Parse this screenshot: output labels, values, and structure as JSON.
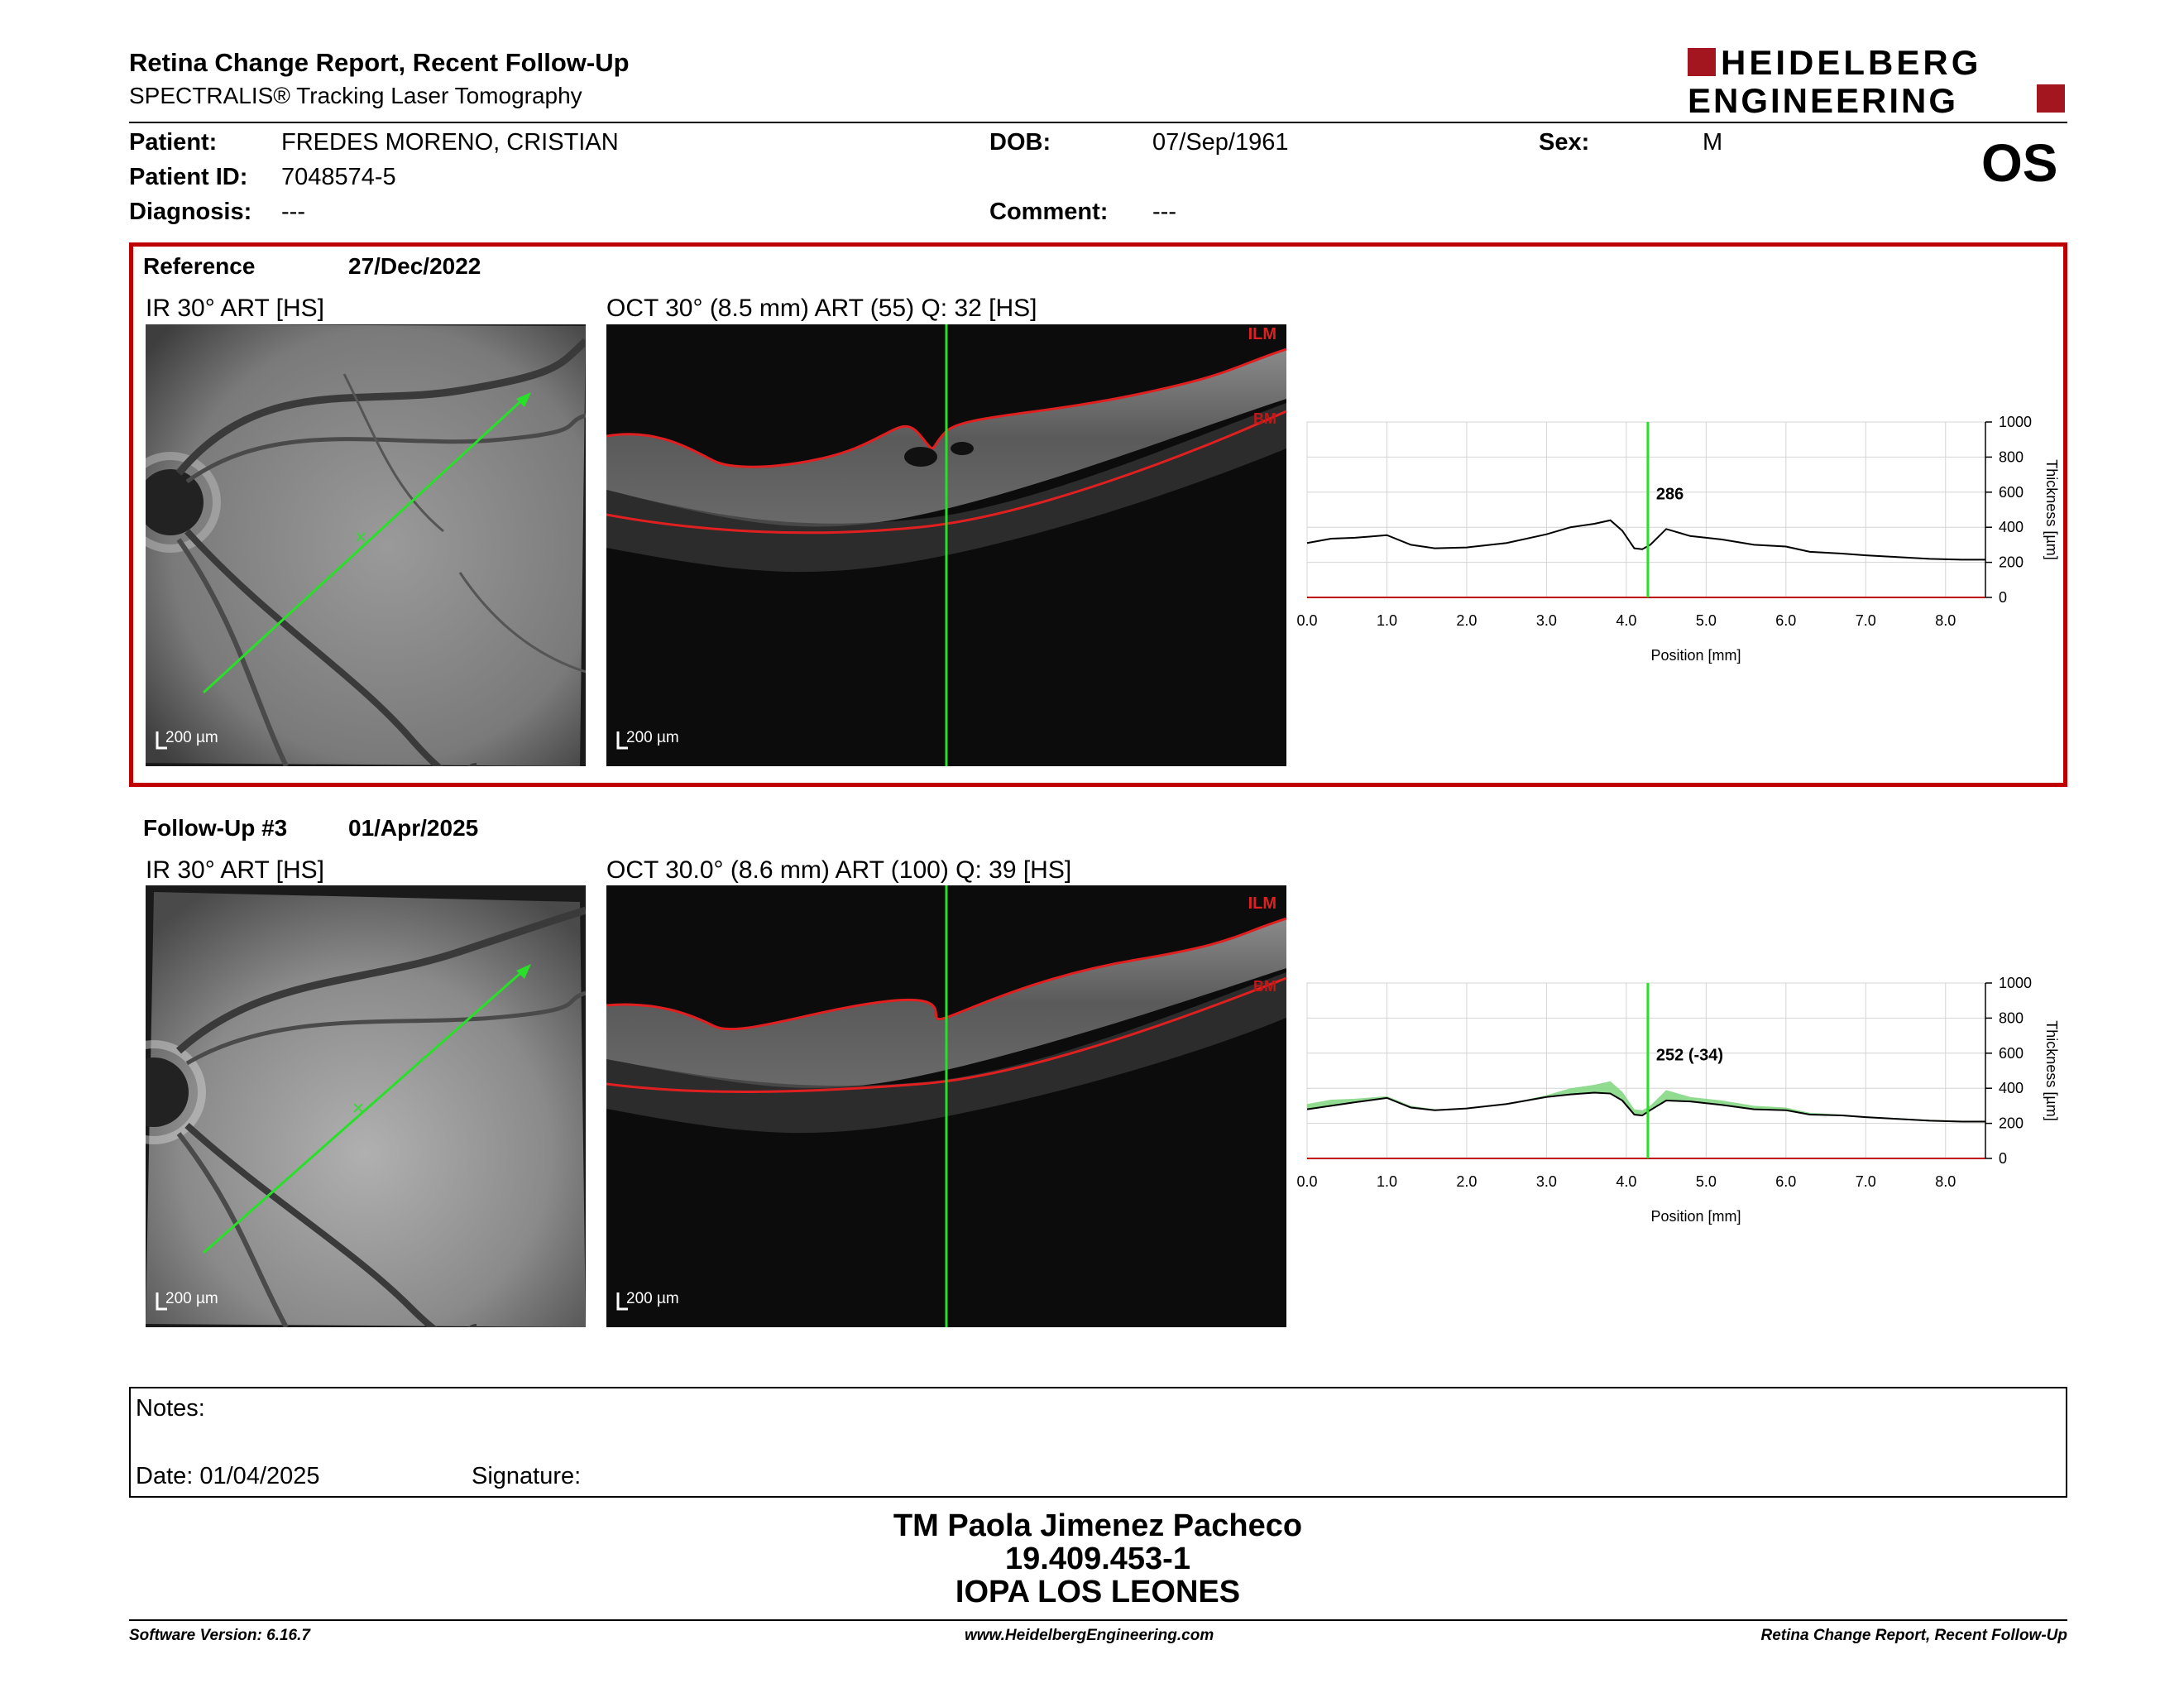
{
  "header": {
    "title": "Retina Change Report, Recent Follow-Up",
    "subtitle": "SPECTRALIS® Tracking Laser Tomography",
    "logo_line1": "HEIDELBERG",
    "logo_line2": "ENGINEERING",
    "eye": "OS"
  },
  "patient": {
    "name_label": "Patient:",
    "name": "FREDES MORENO, CRISTIAN",
    "id_label": "Patient ID:",
    "id": "7048574-5",
    "diagnosis_label": "Diagnosis:",
    "diagnosis": "---",
    "dob_label": "DOB:",
    "dob": "07/Sep/1961",
    "comment_label": "Comment:",
    "comment": "---",
    "sex_label": "Sex:",
    "sex": "M"
  },
  "reference": {
    "label": "Reference",
    "date": "27/Dec/2022",
    "ir_label": "IR 30° ART [HS]",
    "oct_label": "OCT 30° (8.5 mm) ART (55) Q: 32 [HS]",
    "scale_ir": "200 µm",
    "scale_oct": "200 µm",
    "ilm": "ILM",
    "bm": "BM"
  },
  "followup": {
    "label": "Follow-Up #3",
    "date": "01/Apr/2025",
    "ir_label": "IR 30° ART [HS]",
    "oct_label": "OCT 30.0° (8.6 mm) ART (100) Q: 39 [HS]",
    "scale_ir": "200 µm",
    "scale_oct": "200 µm",
    "ilm": "ILM",
    "bm": "BM"
  },
  "chart_data": [
    {
      "type": "line",
      "title": "",
      "xlabel": "Position [mm]",
      "ylabel": "Thickness [µm]",
      "xlim": [
        0,
        8.5
      ],
      "ylim": [
        0,
        1000
      ],
      "xticks": [
        "0.0",
        "1.0",
        "2.0",
        "3.0",
        "4.0",
        "5.0",
        "6.0",
        "7.0",
        "8.0"
      ],
      "yticks": [
        "0",
        "200",
        "400",
        "600",
        "800",
        "1000"
      ],
      "grid": true,
      "cursor_x": 4.27,
      "cursor_label": "286",
      "series": [
        {
          "x": [
            0,
            0.3,
            0.6,
            1.0,
            1.3,
            1.6,
            2.0,
            2.5,
            3.0,
            3.3,
            3.6,
            3.8,
            3.95,
            4.1,
            4.2,
            4.3,
            4.5,
            4.8,
            5.2,
            5.6,
            6.0,
            6.3,
            6.7,
            7.0,
            7.4,
            7.8,
            8.2,
            8.5
          ],
          "y": [
            310,
            335,
            340,
            355,
            300,
            280,
            285,
            310,
            360,
            400,
            420,
            440,
            380,
            280,
            275,
            300,
            390,
            350,
            330,
            300,
            290,
            260,
            250,
            240,
            230,
            220,
            215,
            215
          ]
        }
      ]
    },
    {
      "type": "line",
      "title": "",
      "xlabel": "Position [mm]",
      "ylabel": "Thickness [µm]",
      "xlim": [
        0,
        8.5
      ],
      "ylim": [
        0,
        1000
      ],
      "xticks": [
        "0.0",
        "1.0",
        "2.0",
        "3.0",
        "4.0",
        "5.0",
        "6.0",
        "7.0",
        "8.0"
      ],
      "yticks": [
        "0",
        "200",
        "400",
        "600",
        "800",
        "1000"
      ],
      "grid": true,
      "cursor_x": 4.27,
      "cursor_label": "252 (-34)",
      "fill_color": "#7ed67e",
      "series": [
        {
          "x": [
            0,
            0.3,
            0.6,
            1.0,
            1.3,
            1.6,
            2.0,
            2.5,
            3.0,
            3.3,
            3.6,
            3.8,
            3.95,
            4.1,
            4.2,
            4.3,
            4.5,
            4.8,
            5.2,
            5.6,
            6.0,
            6.3,
            6.7,
            7.0,
            7.4,
            7.8,
            8.2,
            8.5
          ],
          "y": [
            280,
            300,
            320,
            345,
            290,
            275,
            285,
            310,
            350,
            365,
            375,
            370,
            330,
            250,
            245,
            275,
            330,
            325,
            305,
            280,
            275,
            250,
            245,
            235,
            225,
            215,
            210,
            210
          ]
        }
      ]
    }
  ],
  "notes": {
    "notes_label": "Notes:",
    "date_label": "Date: 01/04/2025",
    "signature_label": "Signature:"
  },
  "signature_block": {
    "name": "TM Paola Jimenez Pacheco",
    "rut": "19.409.453-1",
    "org": "IOPA LOS LEONES"
  },
  "footer": {
    "software": "Software Version: 6.16.7",
    "website": "www.HeidelbergEngineering.com",
    "report": "Retina Change Report, Recent Follow-Up"
  }
}
